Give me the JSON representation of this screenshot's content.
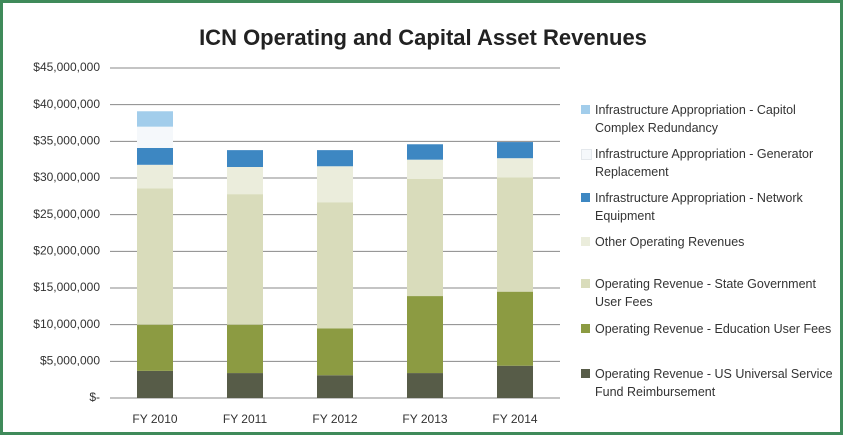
{
  "chart_data": {
    "type": "stacked_bar",
    "title": "ICN Operating and Capital Asset Revenues",
    "categories": [
      "FY 2010",
      "FY 2011",
      "FY 2012",
      "FY 2013",
      "FY 2014"
    ],
    "series": [
      {
        "name": "Operating Revenue - US Universal Service Fund Reimbursement",
        "color": "#575c48",
        "values": [
          3.7,
          3.4,
          3.1,
          3.4,
          4.4
        ]
      },
      {
        "name": "Operating Revenue - Education User Fees",
        "color": "#8c9b42",
        "values": [
          6.3,
          6.6,
          6.4,
          10.5,
          10.1
        ]
      },
      {
        "name": "Operating Revenue - State Government User Fees",
        "color": "#d9dcbb",
        "values": [
          18.6,
          17.8,
          17.2,
          16.0,
          15.6
        ]
      },
      {
        "name": "Other Operating Revenues",
        "color": "#ebeddc",
        "values": [
          3.2,
          3.7,
          4.9,
          2.6,
          2.6
        ]
      },
      {
        "name": "Infrastructure Appropriation - Network Equipment",
        "color": "#3d87c2",
        "values": [
          2.3,
          2.3,
          2.2,
          2.1,
          2.2
        ]
      },
      {
        "name": "Infrastructure Appropriation - Generator Replacement",
        "color": "#f5f8fb",
        "values": [
          2.9,
          0,
          0,
          0,
          0
        ]
      },
      {
        "name": "Infrastructure Appropriation - Capitol Complex Redundancy",
        "color": "#a2cdeb",
        "values": [
          2.1,
          0,
          0,
          0,
          0
        ]
      }
    ],
    "ylim": [
      0,
      45
    ],
    "yticks": [
      {
        "value": 0,
        "label": "$-"
      },
      {
        "value": 5,
        "label": "$5,000,000"
      },
      {
        "value": 10,
        "label": "$10,000,000"
      },
      {
        "value": 15,
        "label": "$15,000,000"
      },
      {
        "value": 20,
        "label": "$20,000,000"
      },
      {
        "value": 25,
        "label": "$25,000,000"
      },
      {
        "value": 30,
        "label": "$30,000,000"
      },
      {
        "value": 35,
        "label": "$35,000,000"
      },
      {
        "value": 40,
        "label": "$40,000,000"
      },
      {
        "value": 45,
        "label": "$45,000,000"
      }
    ],
    "grid": true,
    "legend": "right"
  }
}
